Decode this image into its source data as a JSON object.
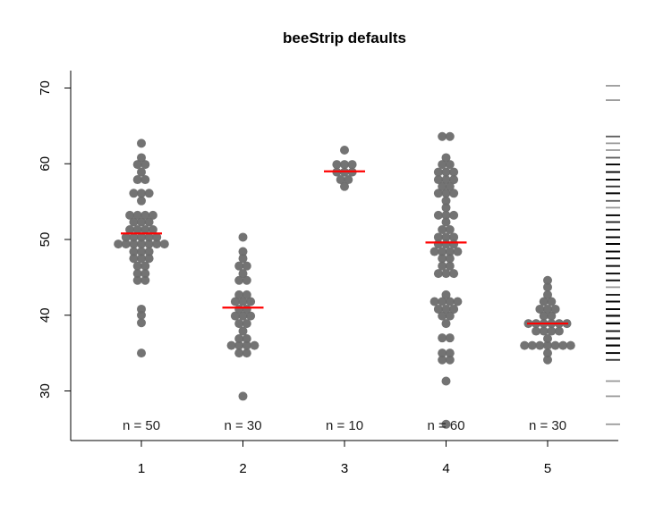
{
  "chart_data": {
    "type": "scatter",
    "title": "beeStrip defaults",
    "xlabel": "",
    "ylabel": "",
    "x_ticks": [
      1,
      2,
      3,
      4,
      5
    ],
    "y_ticks": [
      30,
      40,
      50,
      60,
      70
    ],
    "ylim": [
      24,
      72
    ],
    "grid": false,
    "point_color": "#6b6b6b",
    "median_color": "#ff0000",
    "groups": [
      {
        "x": 1,
        "n_label": "n = 50",
        "median": 50.8,
        "values": [
          35.0,
          39.0,
          40.0,
          40.8,
          44.6,
          44.6,
          45.5,
          45.5,
          46.5,
          46.5,
          47.5,
          47.5,
          47.5,
          48.4,
          48.4,
          48.4,
          49.4,
          49.4,
          49.4,
          49.4,
          49.4,
          49.4,
          49.4,
          50.3,
          50.3,
          50.3,
          50.3,
          50.3,
          51.3,
          51.3,
          51.3,
          51.3,
          52.3,
          52.3,
          52.3,
          53.2,
          53.2,
          53.2,
          53.2,
          55.1,
          56.1,
          56.1,
          56.1,
          57.9,
          57.9,
          58.9,
          59.9,
          59.9,
          60.8,
          62.7
        ]
      },
      {
        "x": 2,
        "n_label": "n = 30",
        "median": 41.0,
        "values": [
          29.3,
          35.0,
          35.0,
          36.0,
          36.0,
          36.0,
          36.0,
          36.9,
          36.9,
          37.9,
          38.9,
          38.9,
          39.9,
          39.9,
          39.9,
          40.8,
          40.8,
          41.8,
          41.8,
          41.8,
          42.7,
          42.7,
          44.6,
          44.6,
          45.5,
          46.5,
          46.5,
          47.5,
          48.4,
          50.3
        ]
      },
      {
        "x": 3,
        "n_label": "n = 10",
        "median": 59.0,
        "values": [
          57.0,
          57.9,
          57.9,
          58.9,
          58.9,
          58.9,
          59.9,
          59.9,
          59.9,
          61.8
        ]
      },
      {
        "x": 4,
        "n_label": "n = 60",
        "median": 49.6,
        "values": [
          25.6,
          31.3,
          34.1,
          34.1,
          35.0,
          35.0,
          37.0,
          37.0,
          38.9,
          39.9,
          39.9,
          40.8,
          40.8,
          40.8,
          41.8,
          41.8,
          41.8,
          41.8,
          42.7,
          45.5,
          45.5,
          45.5,
          46.5,
          46.5,
          47.5,
          47.5,
          48.4,
          48.4,
          48.4,
          48.4,
          49.4,
          49.4,
          49.4,
          50.3,
          50.3,
          50.3,
          51.3,
          51.3,
          52.3,
          53.2,
          53.2,
          53.2,
          54.2,
          55.1,
          56.1,
          56.1,
          56.1,
          57.0,
          57.0,
          57.9,
          57.9,
          57.9,
          58.9,
          58.9,
          58.9,
          59.9,
          59.9,
          60.8,
          63.6,
          63.6
        ]
      },
      {
        "x": 5,
        "n_label": "n = 30",
        "median": 38.9,
        "values": [
          34.1,
          35.0,
          36.0,
          36.0,
          36.0,
          36.0,
          36.0,
          36.0,
          36.0,
          36.9,
          37.9,
          37.9,
          37.9,
          37.9,
          38.9,
          38.9,
          38.9,
          38.9,
          38.9,
          38.9,
          39.9,
          39.9,
          40.8,
          40.8,
          40.8,
          41.8,
          41.8,
          42.7,
          43.7,
          44.6
        ]
      }
    ],
    "rug_extra_values": [
      68.4,
      70.3
    ]
  }
}
